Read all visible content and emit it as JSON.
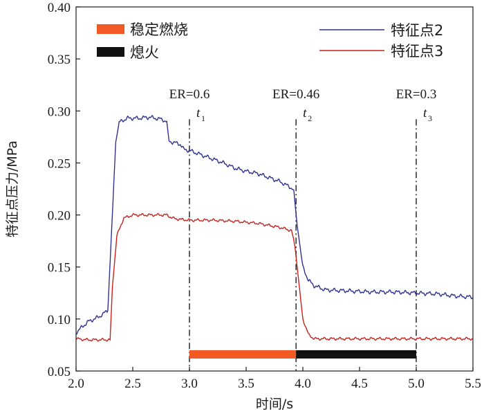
{
  "chart_data": {
    "type": "line",
    "xlabel": "时间/s",
    "ylabel": "特征点压力/MPa",
    "xlim": [
      2.0,
      5.5
    ],
    "ylim": [
      0.05,
      0.4
    ],
    "xticks": [
      "2.0",
      "2.5",
      "3.0",
      "3.5",
      "4.0",
      "4.5",
      "5.0",
      "5.5"
    ],
    "yticks": [
      "0.05",
      "0.10",
      "0.15",
      "0.20",
      "0.25",
      "0.30",
      "0.35",
      "0.40"
    ],
    "grid": false,
    "series": [
      {
        "name": "特征点2",
        "color": "#2e3192",
        "x": [
          2.0,
          2.1,
          2.2,
          2.28,
          2.32,
          2.35,
          2.38,
          2.45,
          2.55,
          2.65,
          2.75,
          2.8,
          2.82,
          2.85,
          2.92,
          2.95,
          3.0,
          3.1,
          3.2,
          3.3,
          3.4,
          3.5,
          3.6,
          3.7,
          3.8,
          3.9,
          3.92,
          3.95,
          4.0,
          4.05,
          4.1,
          4.2,
          4.4,
          4.6,
          4.8,
          5.0,
          5.2,
          5.35,
          5.5
        ],
        "y": [
          0.087,
          0.097,
          0.102,
          0.108,
          0.2,
          0.27,
          0.289,
          0.293,
          0.293,
          0.294,
          0.292,
          0.29,
          0.271,
          0.27,
          0.268,
          0.263,
          0.262,
          0.258,
          0.254,
          0.25,
          0.245,
          0.242,
          0.24,
          0.236,
          0.232,
          0.226,
          0.224,
          0.19,
          0.15,
          0.137,
          0.132,
          0.128,
          0.127,
          0.126,
          0.126,
          0.125,
          0.124,
          0.122,
          0.121
        ]
      },
      {
        "name": "特征点3",
        "color": "#c8211c",
        "x": [
          2.0,
          2.1,
          2.2,
          2.3,
          2.32,
          2.36,
          2.42,
          2.5,
          2.6,
          2.7,
          2.8,
          2.85,
          2.9,
          3.0,
          3.2,
          3.4,
          3.6,
          3.8,
          3.9,
          3.93,
          3.97,
          4.0,
          4.05,
          4.1,
          4.2,
          4.5,
          5.0,
          5.5
        ],
        "y": [
          0.081,
          0.08,
          0.08,
          0.08,
          0.13,
          0.18,
          0.197,
          0.2,
          0.2,
          0.2,
          0.2,
          0.197,
          0.196,
          0.195,
          0.195,
          0.194,
          0.192,
          0.188,
          0.185,
          0.17,
          0.13,
          0.1,
          0.085,
          0.081,
          0.081,
          0.081,
          0.081,
          0.081
        ]
      }
    ],
    "markers": [
      {
        "x": 3.0,
        "er_label": "ER=0.6",
        "t_label": "t",
        "t_sub": "1"
      },
      {
        "x": 3.94,
        "er_label": "ER=0.46",
        "t_label": "t",
        "t_sub": "2"
      },
      {
        "x": 5.0,
        "er_label": "ER=0.3",
        "t_label": "t",
        "t_sub": "3"
      }
    ],
    "phase_bars": [
      {
        "name": "稳定燃烧",
        "x_start": 3.0,
        "x_end": 3.94,
        "y": 0.066,
        "color": "#f15a24"
      },
      {
        "name": "熄火",
        "x_start": 3.94,
        "x_end": 5.0,
        "y": 0.066,
        "color": "#111111"
      }
    ],
    "legend_left": [
      {
        "label": "稳定燃烧",
        "color": "#f15a24"
      },
      {
        "label": "熄火",
        "color": "#111111"
      }
    ],
    "legend_right": [
      {
        "label": "特征点2",
        "color": "#2e3192"
      },
      {
        "label": "特征点3",
        "color": "#c8211c"
      }
    ],
    "legend_placement_left": "top-left",
    "legend_placement_right": "top-right"
  }
}
